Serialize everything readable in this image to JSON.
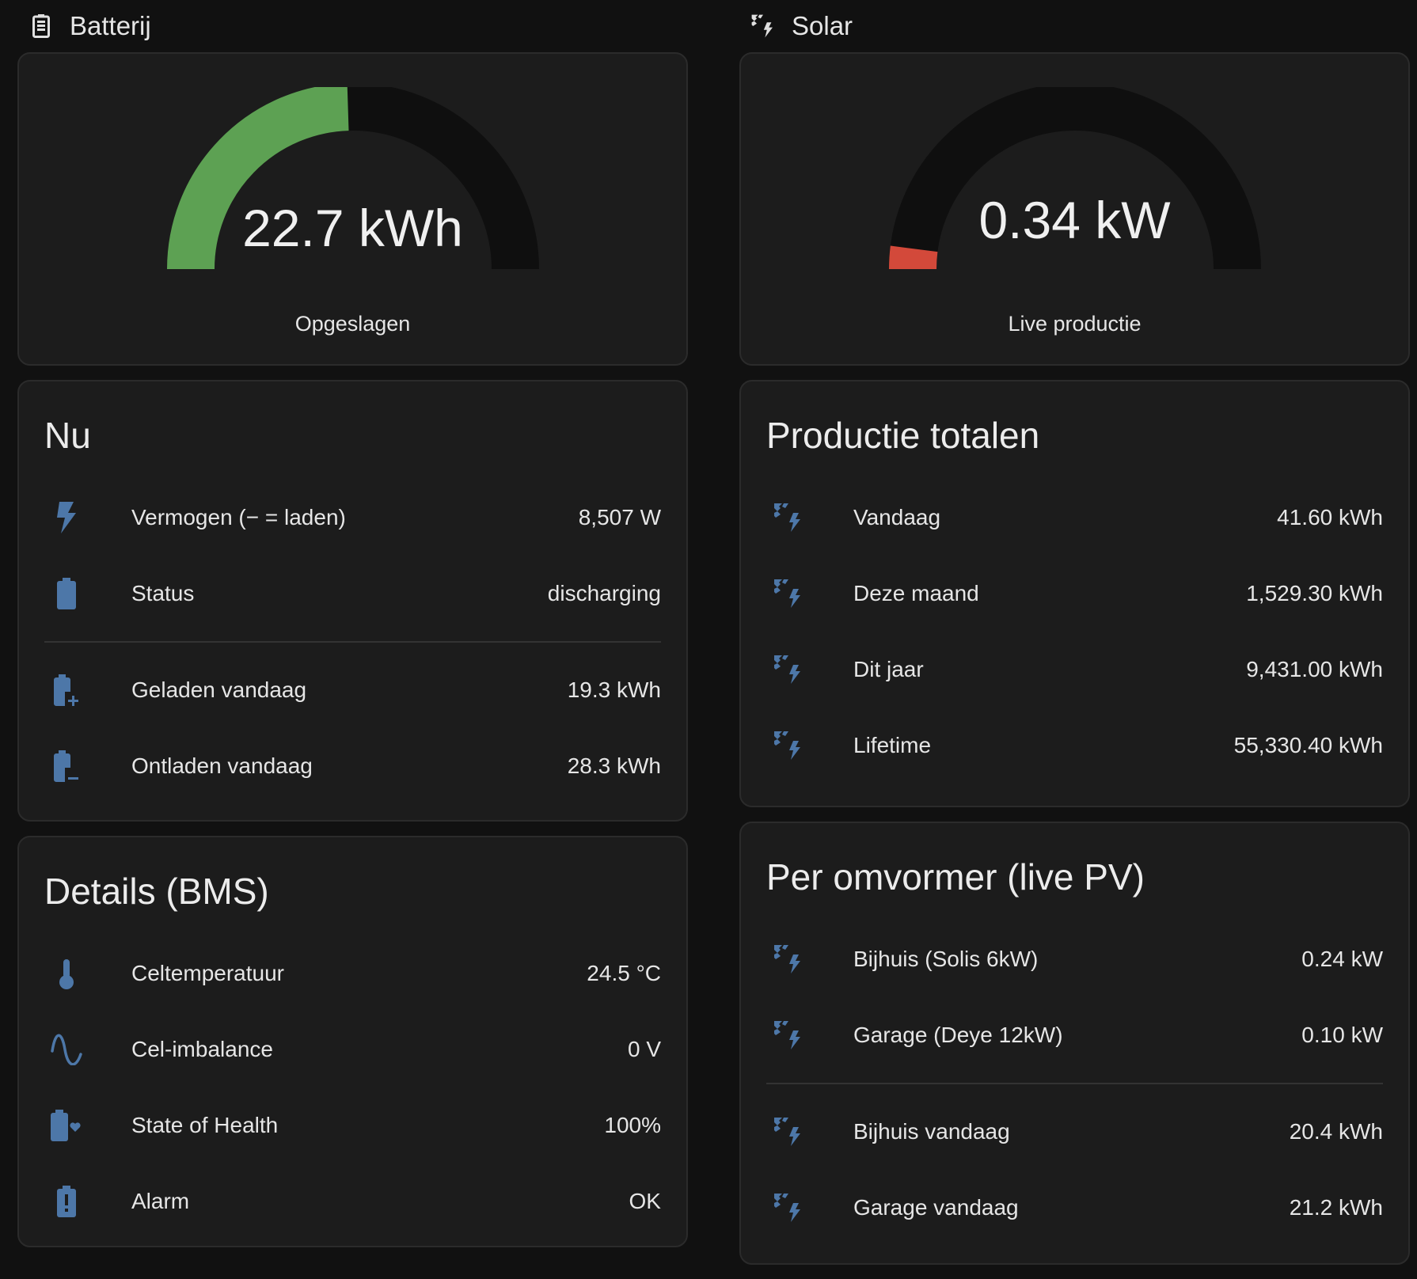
{
  "colors": {
    "icon": "#4d77a8",
    "battery_gauge": "#5da153",
    "solar_gauge": "#d3493a",
    "gauge_track": "#0f0f0f"
  },
  "battery": {
    "header": {
      "title": "Batterij",
      "icon": "battery-icon"
    },
    "gauge": {
      "value": "22.7 kWh",
      "name": "Opgeslagen",
      "fraction": 0.49
    },
    "now": {
      "title": "Nu",
      "rows": [
        {
          "label": "Vermogen (− = laden)",
          "value": "8,507 W",
          "icon": "lightning-bolt-icon"
        },
        {
          "label": "Status",
          "value": "discharging",
          "icon": "battery-icon"
        }
      ],
      "rows2": [
        {
          "label": "Geladen vandaag",
          "value": "19.3 kWh",
          "icon": "battery-plus-icon"
        },
        {
          "label": "Ontladen vandaag",
          "value": "28.3 kWh",
          "icon": "battery-minus-icon"
        }
      ]
    },
    "details": {
      "title": "Details (BMS)",
      "rows": [
        {
          "label": "Celtemperatuur",
          "value": "24.5 °C",
          "icon": "thermometer-icon"
        },
        {
          "label": "Cel-imbalance",
          "value": "0 V",
          "icon": "sine-wave-icon"
        },
        {
          "label": "State of Health",
          "value": "100%",
          "icon": "battery-heart-icon"
        },
        {
          "label": "Alarm",
          "value": "OK",
          "icon": "battery-alert-icon"
        }
      ]
    }
  },
  "solar": {
    "header": {
      "title": "Solar",
      "icon": "solar-power-icon"
    },
    "gauge": {
      "value": "0.34 kW",
      "name": "Live productie",
      "fraction": 0.04
    },
    "totals": {
      "title": "Productie totalen",
      "rows": [
        {
          "label": "Vandaag",
          "value": "41.60 kWh",
          "icon": "solar-power-icon"
        },
        {
          "label": "Deze maand",
          "value": "1,529.30 kWh",
          "icon": "solar-power-icon"
        },
        {
          "label": "Dit jaar",
          "value": "9,431.00 kWh",
          "icon": "solar-power-icon"
        },
        {
          "label": "Lifetime",
          "value": "55,330.40 kWh",
          "icon": "solar-power-icon"
        }
      ]
    },
    "inverters": {
      "title": "Per omvormer (live PV)",
      "rows": [
        {
          "label": "Bijhuis (Solis 6kW)",
          "value": "0.24 kW",
          "icon": "solar-power-icon"
        },
        {
          "label": "Garage (Deye 12kW)",
          "value": "0.10 kW",
          "icon": "solar-power-icon"
        }
      ],
      "rows2": [
        {
          "label": "Bijhuis vandaag",
          "value": "20.4 kWh",
          "icon": "solar-power-icon"
        },
        {
          "label": "Garage vandaag",
          "value": "21.2 kWh",
          "icon": "solar-power-icon"
        }
      ]
    }
  }
}
